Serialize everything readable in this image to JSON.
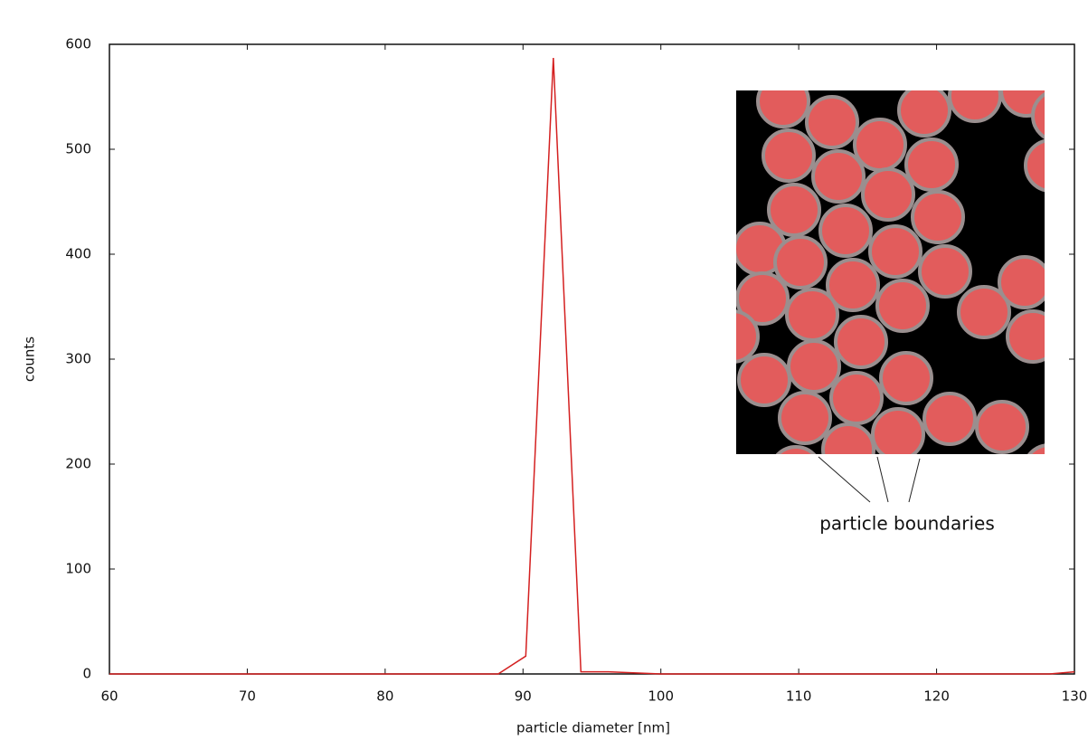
{
  "chart_data": {
    "type": "line",
    "x_label": "particle diameter [nm]",
    "y_label": "counts",
    "annotation": "particle boundaries",
    "x": [
      60,
      70,
      80,
      88.2,
      90.2,
      92.2,
      94.2,
      96.2,
      100,
      110,
      120,
      128.2,
      130
    ],
    "series": [
      {
        "color": "#d42020",
        "values": [
          0,
          0,
          0,
          0,
          17,
          587,
          2,
          2,
          0,
          0,
          0,
          0,
          2
        ]
      }
    ],
    "xlim": [
      60,
      130
    ],
    "xticks": [
      60,
      70,
      80,
      90,
      100,
      110,
      120,
      130
    ],
    "ylim": [
      0,
      600
    ],
    "yticks": [
      0,
      100,
      200,
      300,
      400,
      500,
      600
    ],
    "grid": false
  }
}
